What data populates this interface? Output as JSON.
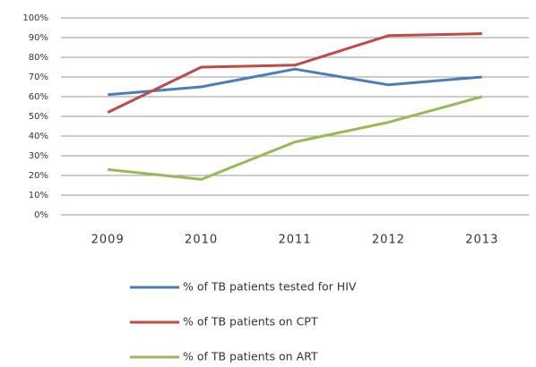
{
  "chart_data": {
    "type": "line",
    "categories": [
      "2009",
      "2010",
      "2011",
      "2012",
      "2013"
    ],
    "series": [
      {
        "name": "% of TB patients tested for HIV",
        "color": "#4a7ebb",
        "values": [
          61,
          65,
          74,
          66,
          70
        ]
      },
      {
        "name": "% of TB patients on CPT",
        "color": "#be4b48",
        "values": [
          52,
          75,
          76,
          91,
          92
        ]
      },
      {
        "name": "% of TB patients on ART",
        "color": "#98b954",
        "values": [
          23,
          18,
          37,
          47,
          60
        ]
      }
    ],
    "ylim": [
      0,
      100
    ],
    "yticks": [
      {
        "value": 0,
        "label": "0%"
      },
      {
        "value": 10,
        "label": "10%"
      },
      {
        "value": 20,
        "label": "20%"
      },
      {
        "value": 30,
        "label": "30%"
      },
      {
        "value": 40,
        "label": "40%"
      },
      {
        "value": 50,
        "label": "50%"
      },
      {
        "value": 60,
        "label": "60%"
      },
      {
        "value": 70,
        "label": "70%"
      },
      {
        "value": 80,
        "label": "80%"
      },
      {
        "value": 90,
        "label": "90%"
      },
      {
        "value": 100,
        "label": "100%"
      }
    ],
    "grid": true,
    "legend": "bottom"
  }
}
